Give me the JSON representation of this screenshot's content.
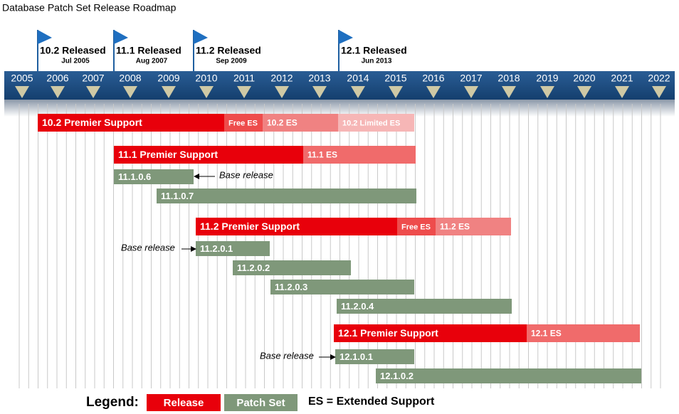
{
  "header": {
    "title": "Database Patch Set Release Roadmap"
  },
  "years": [
    "2005",
    "2006",
    "2007",
    "2008",
    "2009",
    "2010",
    "2011",
    "2012",
    "2013",
    "2014",
    "2015",
    "2016",
    "2017",
    "2018",
    "2019",
    "2020",
    "2021",
    "2022"
  ],
  "milestones": [
    {
      "label": "10.2 Released",
      "date": "Jul 2005"
    },
    {
      "label": "11.1 Released",
      "date": "Aug 2007"
    },
    {
      "label": "11.2 Released",
      "date": "Sep 2009"
    },
    {
      "label": "12.1 Released",
      "date": "Jun 2013"
    }
  ],
  "bars": [
    {
      "label": "10.2 Premier Support"
    },
    {
      "label": "Free ES"
    },
    {
      "label": "10.2 ES"
    },
    {
      "label": "10.2 Limited ES"
    },
    {
      "label": "11.1 Premier Support"
    },
    {
      "label": "11.1 ES"
    },
    {
      "label": "11.1.0.6"
    },
    {
      "label": "11.1.0.7"
    },
    {
      "label": "11.2 Premier Support"
    },
    {
      "label": "Free ES"
    },
    {
      "label": "11.2 ES"
    },
    {
      "label": "11.2.0.1"
    },
    {
      "label": "11.2.0.2"
    },
    {
      "label": "11.2.0.3"
    },
    {
      "label": "11.2.0.4"
    },
    {
      "label": "12.1 Premier Support"
    },
    {
      "label": "12.1 ES"
    },
    {
      "label": "12.1.0.1"
    },
    {
      "label": "12.1.0.2"
    }
  ],
  "annotations": [
    "Base release",
    "Base release",
    "Base release"
  ],
  "legend": {
    "title": "Legend:",
    "items": [
      "Release",
      "Patch Set"
    ],
    "note": "ES = Extended Support"
  }
}
